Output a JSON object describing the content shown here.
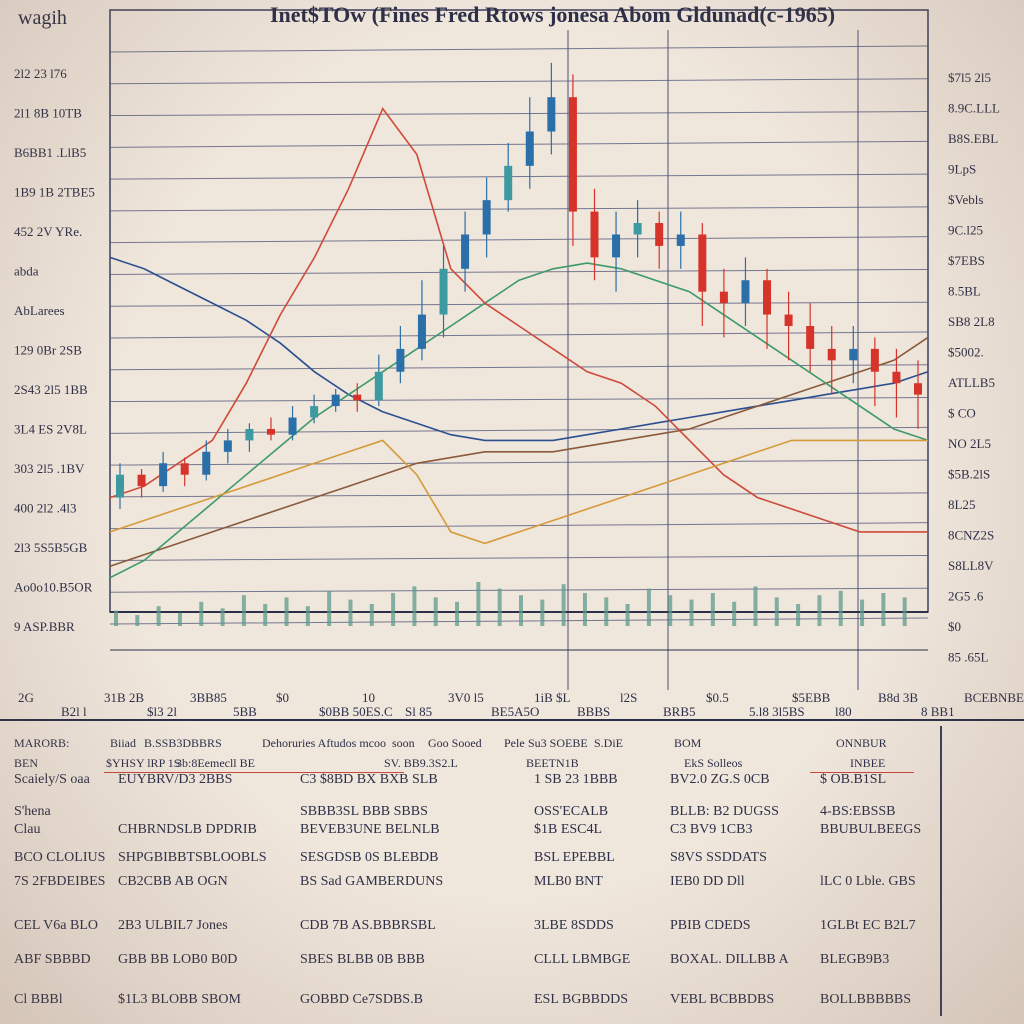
{
  "title": "Inet$TOw (Fines Fred Rtows jonesa Abom Gldunad(c-1965)",
  "corner_label": "wagih",
  "chart_data": {
    "type": "line",
    "title": "Inet$TOw (Fines Fred Rtows jonesa Abom Gldunad(c-1965)",
    "xlabel": "",
    "ylabel": "",
    "y_tick_labels_left": [
      "2l2 23 l76",
      "2l1 8B 10TB",
      "B6BB1 .LlB5",
      "1B9 1B 2TBE5",
      "452 2V YRe.",
      "abda",
      "AbLarees",
      "129 0Br 2SB",
      "2S43 2l5 1BB",
      "3L4 ES 2V8L",
      "303 2l5 .1BV",
      "400 2l2 .4l3",
      "2l3 5S5B5GB",
      "Ao0o10.B5OR",
      "9 ASP.BBR"
    ],
    "y_tick_labels_right": [
      "$7l5 2l5",
      "8.9C.LLL",
      "B8S.EBL",
      "9LpS",
      "$Vebls",
      "9C.l25",
      "$7EBS",
      "8.5BL",
      "SB8 2L8",
      "$5002.",
      "ATLLB5",
      "$ CO",
      "NO 2L5",
      "$5B.2lS",
      "8L25",
      "8CNZ2S",
      "S8LL8V",
      "2G5 .6",
      "$0",
      "85 .65L"
    ],
    "x_tick_labels": [
      "2G",
      "B2l l",
      "31B 2B",
      "$l3 2l",
      "3BB85",
      "5BB",
      "$0",
      "$0BB 50ES.C",
      "10",
      "Sl 85",
      "3V0 l5",
      "BE5A5O",
      "1iB  $L",
      "BBBS",
      "l2S",
      "BRB5",
      "$0.5",
      "5.l8 3l5BS",
      "$5EBB",
      "l80",
      "B8d 3B",
      "8 BB1",
      "BCEBNBE"
    ],
    "y_range": [
      0,
      100
    ],
    "grid": true,
    "legend": "none",
    "series": [
      {
        "color": "#2b4f8f",
        "values": [
          62,
          60,
          57,
          54,
          51,
          47,
          42,
          38,
          35,
          33,
          31,
          30,
          30,
          30,
          31,
          32,
          33,
          34,
          35,
          36,
          37,
          38,
          39,
          40,
          42
        ]
      },
      {
        "color": "#8a5a3a",
        "values": [
          8,
          10,
          12,
          14,
          16,
          18,
          20,
          22,
          24,
          26,
          27,
          28,
          28,
          28,
          29,
          30,
          31,
          32,
          34,
          36,
          38,
          40,
          42,
          44,
          48
        ]
      },
      {
        "color": "#3d9a6a",
        "values": [
          6,
          9,
          14,
          19,
          24,
          29,
          34,
          38,
          42,
          46,
          50,
          54,
          58,
          60,
          61,
          60,
          58,
          56,
          52,
          48,
          44,
          40,
          36,
          32,
          30
        ]
      },
      {
        "color": "#d04a3a",
        "values": [
          20,
          22,
          26,
          30,
          40,
          52,
          62,
          74,
          88,
          80,
          60,
          54,
          50,
          46,
          42,
          40,
          36,
          30,
          24,
          20,
          18,
          16,
          14,
          14,
          14
        ]
      },
      {
        "color": "#d59a3a",
        "values": [
          14,
          16,
          18,
          20,
          22,
          24,
          26,
          28,
          30,
          24,
          14,
          12,
          14,
          16,
          18,
          20,
          22,
          24,
          26,
          28,
          30,
          30,
          30,
          30,
          30
        ]
      }
    ],
    "candles": [
      {
        "o": 20,
        "c": 24,
        "h": 26,
        "l": 18
      },
      {
        "o": 24,
        "c": 22,
        "h": 25,
        "l": 20
      },
      {
        "o": 22,
        "c": 26,
        "h": 28,
        "l": 21
      },
      {
        "o": 26,
        "c": 24,
        "h": 27,
        "l": 22
      },
      {
        "o": 24,
        "c": 28,
        "h": 30,
        "l": 23
      },
      {
        "o": 28,
        "c": 30,
        "h": 32,
        "l": 26
      },
      {
        "o": 30,
        "c": 32,
        "h": 33,
        "l": 28
      },
      {
        "o": 32,
        "c": 31,
        "h": 34,
        "l": 30
      },
      {
        "o": 31,
        "c": 34,
        "h": 36,
        "l": 30
      },
      {
        "o": 34,
        "c": 36,
        "h": 38,
        "l": 33
      },
      {
        "o": 36,
        "c": 38,
        "h": 39,
        "l": 35
      },
      {
        "o": 38,
        "c": 37,
        "h": 40,
        "l": 35
      },
      {
        "o": 37,
        "c": 42,
        "h": 45,
        "l": 36
      },
      {
        "o": 42,
        "c": 46,
        "h": 50,
        "l": 40
      },
      {
        "o": 46,
        "c": 52,
        "h": 58,
        "l": 44
      },
      {
        "o": 52,
        "c": 60,
        "h": 64,
        "l": 48
      },
      {
        "o": 60,
        "c": 66,
        "h": 70,
        "l": 56
      },
      {
        "o": 66,
        "c": 72,
        "h": 76,
        "l": 62
      },
      {
        "o": 72,
        "c": 78,
        "h": 82,
        "l": 70
      },
      {
        "o": 78,
        "c": 84,
        "h": 90,
        "l": 74
      },
      {
        "o": 84,
        "c": 90,
        "h": 96,
        "l": 80
      },
      {
        "o": 90,
        "c": 70,
        "h": 94,
        "l": 64
      },
      {
        "o": 70,
        "c": 62,
        "h": 74,
        "l": 58
      },
      {
        "o": 62,
        "c": 66,
        "h": 70,
        "l": 56
      },
      {
        "o": 66,
        "c": 68,
        "h": 72,
        "l": 62
      },
      {
        "o": 68,
        "c": 64,
        "h": 70,
        "l": 60
      },
      {
        "o": 64,
        "c": 66,
        "h": 70,
        "l": 60
      },
      {
        "o": 66,
        "c": 56,
        "h": 68,
        "l": 50
      },
      {
        "o": 56,
        "c": 54,
        "h": 60,
        "l": 48
      },
      {
        "o": 54,
        "c": 58,
        "h": 62,
        "l": 50
      },
      {
        "o": 58,
        "c": 52,
        "h": 60,
        "l": 46
      },
      {
        "o": 52,
        "c": 50,
        "h": 56,
        "l": 44
      },
      {
        "o": 50,
        "c": 46,
        "h": 54,
        "l": 42
      },
      {
        "o": 46,
        "c": 44,
        "h": 50,
        "l": 38
      },
      {
        "o": 44,
        "c": 46,
        "h": 50,
        "l": 40
      },
      {
        "o": 46,
        "c": 42,
        "h": 48,
        "l": 36
      },
      {
        "o": 42,
        "c": 40,
        "h": 46,
        "l": 34
      },
      {
        "o": 40,
        "c": 38,
        "h": 44,
        "l": 32
      }
    ],
    "volume": [
      14,
      10,
      18,
      12,
      22,
      16,
      28,
      20,
      26,
      18,
      32,
      24,
      20,
      30,
      36,
      26,
      22,
      40,
      34,
      28,
      24,
      38,
      30,
      26,
      20,
      34,
      28,
      24,
      30,
      22,
      36,
      26,
      20,
      28,
      32,
      24,
      30,
      26
    ]
  },
  "table": {
    "header": [
      "MARORB:",
      "Biiad",
      "B.SSB3DBBRS",
      "Dehoruries Aftudos mcoo",
      "soon",
      "Goo Sooed",
      "Pele",
      "Su3 SOEBE",
      "S.DiE",
      "BOM",
      "ONNBUR"
    ],
    "subheader": [
      "BEN",
      "$YHSY lRP 1S",
      "3b:8Eemecll BE",
      "SV. BB9.3S2.L",
      "BEETN1B",
      "EkS Solleos",
      "INBEE"
    ],
    "rows": [
      [
        "Scaiely/S oaa",
        "EUYBRV/D3 2BBS",
        "C3 $8BD BX BXB SLB",
        "1 SB 23 1BBB",
        "BV2.0 ZG.S 0CB",
        "$ OB.B1SL"
      ],
      [
        "S'hena",
        "",
        "SBBB3SL BBB SBBS",
        "OSS'ECALB",
        "BLLB: B2 DUGSS",
        "4-BS:EBSSB"
      ],
      [
        "Clau",
        "CHBRNDSLB DPDRIB",
        "BEVEB3UNE BELNLB",
        "$1B ESC4L",
        "C3 BV9 1CB3",
        "BBUBULBEEGS"
      ],
      [
        "BCO CLOLIUS",
        "SHPGBIBBTSBLOOBLS",
        "SESGDSB 0S BLEBDB",
        "BSL EPEBBL",
        "S8VS SSDDATS",
        ""
      ],
      [
        "7S 2FBDEIBES",
        "CB2CBB AB OGN",
        "BS Sad GAMBERDUNS",
        "MLB0 BNT",
        "IEB0 DD Dll",
        "lLC 0 Lble. GBS"
      ],
      [
        "CEL V6a BLO",
        "2B3 ULBIL7 Jones",
        "CDB 7B AS.BBBRSBL",
        "3LBE 8SDDS",
        "PBIB  CDEDS",
        "1GLBt EC B2L7"
      ],
      [
        "ABF SBBBD",
        "GBB BB LOB0 B0D",
        "SBES BLBB 0B BBB",
        "CLLL LBMBGE",
        "BOXAL. DILLBB A",
        "BLEGB9B3"
      ],
      [
        "Cl BBBl",
        "$1L3 BLOBB SBOM",
        "GOBBD  Ce7SDBS.B",
        "ESL BGBBDDS",
        "VEBL BCBBDBS",
        "BOLLBBBBBS"
      ]
    ]
  }
}
